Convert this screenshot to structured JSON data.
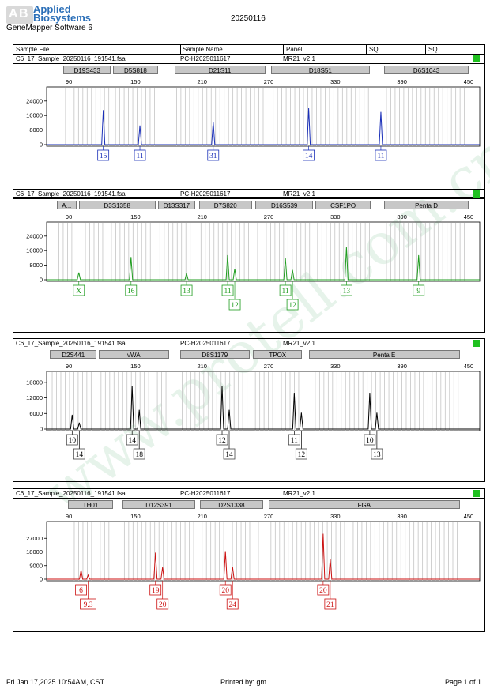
{
  "header": {
    "brand_line1": "Applied",
    "brand_line2": "Biosystems",
    "software": "GeneMapper Software 6",
    "date": "20250116",
    "columns": [
      "Sample File",
      "Sample Name",
      "Panel",
      "SQI",
      "SQ"
    ]
  },
  "watermark": "www.protell.com.cn",
  "footer": {
    "left": "Fri Jan 17,2025 10:54AM, CST",
    "center": "Printed by: gm",
    "right": "Page 1 of 1"
  },
  "chart_data": [
    {
      "type": "line",
      "sample_file": "C6_17_Sample_20250116_191541.fsa",
      "sample_name": "PC-H2025011617",
      "panel": "MR21_v2.1",
      "color": "#1a2fb8",
      "x_ticks": [
        90,
        150,
        210,
        270,
        330,
        390,
        450
      ],
      "y_ticks": [
        0,
        8000,
        16000,
        24000
      ],
      "ylim": [
        0,
        30000
      ],
      "loci": [
        {
          "name": "D19S433",
          "from": 85,
          "to": 128
        },
        {
          "name": "D5S818",
          "from": 130,
          "to": 170
        },
        {
          "name": "D21S11",
          "from": 185,
          "to": 267
        },
        {
          "name": "D18S51",
          "from": 272,
          "to": 361
        },
        {
          "name": "D6S1043",
          "from": 374,
          "to": 450
        }
      ],
      "peaks": [
        {
          "x": 121,
          "height": 19000,
          "labels": [
            "15"
          ]
        },
        {
          "x": 154,
          "height": 10500,
          "labels": [
            "11"
          ]
        },
        {
          "x": 220,
          "height": 12500,
          "labels": [
            "31"
          ]
        },
        {
          "x": 306,
          "height": 20000,
          "labels": [
            "14"
          ]
        },
        {
          "x": 371,
          "height": 18000,
          "labels": [
            "11"
          ]
        }
      ]
    },
    {
      "type": "line",
      "sample_file": "C6_17_Sample_20250116_191541.fsa",
      "sample_name": "PC-H2025011617",
      "panel": "MR21_v2.1",
      "color": "#1f9c1f",
      "x_ticks": [
        90,
        150,
        210,
        270,
        330,
        390,
        450
      ],
      "y_ticks": [
        0,
        8000,
        16000,
        24000
      ],
      "ylim": [
        0,
        30000
      ],
      "loci": [
        {
          "name": "A...",
          "from": 79,
          "to": 97
        },
        {
          "name": "D3S1358",
          "from": 99,
          "to": 168
        },
        {
          "name": "D13S317",
          "from": 170,
          "to": 204
        },
        {
          "name": "D7S820",
          "from": 207,
          "to": 255
        },
        {
          "name": "D16S539",
          "from": 258,
          "to": 310
        },
        {
          "name": "CSF1PO",
          "from": 312,
          "to": 362
        },
        {
          "name": "Penta D",
          "from": 374,
          "to": 450
        }
      ],
      "peaks": [
        {
          "x": 99,
          "height": 4000,
          "labels": [
            "X"
          ]
        },
        {
          "x": 146,
          "height": 12500,
          "labels": [
            "16"
          ]
        },
        {
          "x": 196,
          "height": 3500,
          "labels": [
            "13"
          ]
        },
        {
          "x": 233,
          "height": 13500,
          "labels": [
            "11",
            "12"
          ]
        },
        {
          "x": 285,
          "height": 12000,
          "labels": [
            "11",
            "12"
          ]
        },
        {
          "x": 340,
          "height": 18000,
          "labels": [
            "13"
          ]
        },
        {
          "x": 405,
          "height": 13500,
          "labels": [
            "9"
          ]
        }
      ]
    },
    {
      "type": "line",
      "sample_file": "C6_17_Sample_20250116_191541.fsa",
      "sample_name": "PC-H2025011617",
      "panel": "MR21_v2.1",
      "color": "#000000",
      "x_ticks": [
        90,
        150,
        210,
        270,
        330,
        390,
        450
      ],
      "y_ticks": [
        0,
        6000,
        12000,
        18000
      ],
      "ylim": [
        0,
        21000
      ],
      "loci": [
        {
          "name": "D2S441",
          "from": 73,
          "to": 115
        },
        {
          "name": "vWA",
          "from": 117,
          "to": 180
        },
        {
          "name": "D8S1179",
          "from": 190,
          "to": 253
        },
        {
          "name": "TPOX",
          "from": 256,
          "to": 300
        },
        {
          "name": "Penta E",
          "from": 306,
          "to": 442
        }
      ],
      "peaks": [
        {
          "x": 93,
          "height": 5500,
          "labels": [
            "10",
            "14"
          ]
        },
        {
          "x": 147,
          "height": 16500,
          "labels": [
            "14",
            "18"
          ]
        },
        {
          "x": 228,
          "height": 16500,
          "labels": [
            "12",
            "14"
          ]
        },
        {
          "x": 293,
          "height": 14000,
          "labels": [
            "11",
            "12"
          ]
        },
        {
          "x": 361,
          "height": 14000,
          "labels": [
            "10",
            "13"
          ]
        }
      ]
    },
    {
      "type": "line",
      "sample_file": "C6_17_Sample_20250116_191541.fsa",
      "sample_name": "PC-H2025011617",
      "panel": "MR21_v2.1",
      "color": "#cc1111",
      "x_ticks": [
        90,
        150,
        210,
        270,
        330,
        390,
        450
      ],
      "y_ticks": [
        0,
        9000,
        18000,
        27000
      ],
      "ylim": [
        0,
        36000
      ],
      "loci": [
        {
          "name": "TH01",
          "from": 89,
          "to": 130
        },
        {
          "name": "D12S391",
          "from": 138,
          "to": 204
        },
        {
          "name": "D2S1338",
          "from": 208,
          "to": 265
        },
        {
          "name": "FGA",
          "from": 270,
          "to": 442
        }
      ],
      "peaks": [
        {
          "x": 101,
          "height": 6000,
          "labels": [
            "6",
            "9.3"
          ]
        },
        {
          "x": 168,
          "height": 17500,
          "labels": [
            "19",
            "20"
          ]
        },
        {
          "x": 231,
          "height": 18500,
          "labels": [
            "20",
            "24"
          ]
        },
        {
          "x": 319,
          "height": 30000,
          "labels": [
            "20",
            "21"
          ]
        }
      ]
    }
  ]
}
